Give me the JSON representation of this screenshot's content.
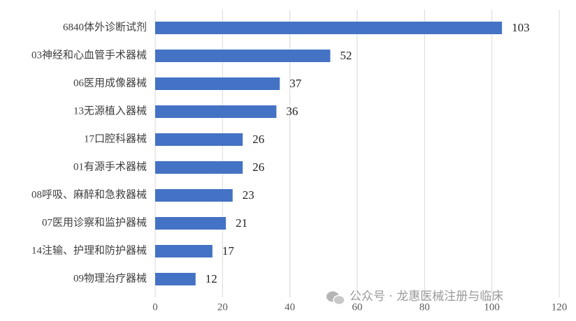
{
  "chart_data": {
    "type": "bar",
    "orientation": "horizontal",
    "categories": [
      "6840体外诊断试剂",
      "03神经和心血管手术器械",
      "06医用成像器械",
      "13无源植入器械",
      "17口腔科器械",
      "01有源手术器械",
      "08呼吸、麻醉和急救器械",
      "07医用诊察和监护器械",
      "14注输、护理和防护器械",
      "09物理治疗器械"
    ],
    "values": [
      103,
      52,
      37,
      36,
      26,
      26,
      23,
      21,
      17,
      12
    ],
    "color": "#4472c4",
    "xlim": [
      0,
      120
    ],
    "xticks": [
      0,
      20,
      40,
      60,
      80,
      100,
      120
    ],
    "grid": true
  },
  "watermark": "公众号 · 龙惠医械注册与临床"
}
